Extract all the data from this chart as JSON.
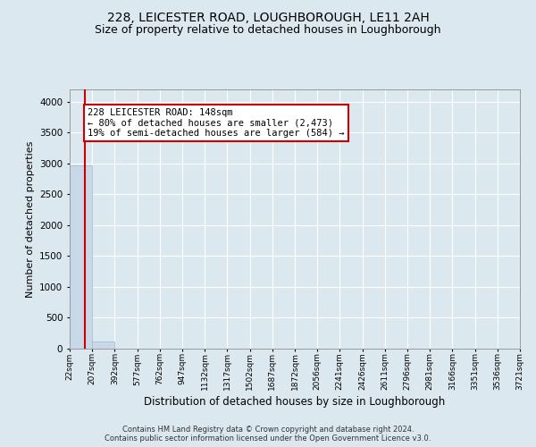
{
  "title": "228, LEICESTER ROAD, LOUGHBOROUGH, LE11 2AH",
  "subtitle": "Size of property relative to detached houses in Loughborough",
  "xlabel": "Distribution of detached houses by size in Loughborough",
  "ylabel": "Number of detached properties",
  "footer_line1": "Contains HM Land Registry data © Crown copyright and database right 2024.",
  "footer_line2": "Contains public sector information licensed under the Open Government Licence v3.0.",
  "bin_edges": [
    22,
    207,
    392,
    577,
    762,
    947,
    1132,
    1317,
    1502,
    1687,
    1872,
    2056,
    2241,
    2426,
    2611,
    2796,
    2981,
    3166,
    3351,
    3536,
    3721
  ],
  "bin_labels": [
    "22sqm",
    "207sqm",
    "392sqm",
    "577sqm",
    "762sqm",
    "947sqm",
    "1132sqm",
    "1317sqm",
    "1502sqm",
    "1687sqm",
    "1872sqm",
    "2056sqm",
    "2241sqm",
    "2426sqm",
    "2611sqm",
    "2796sqm",
    "2981sqm",
    "3166sqm",
    "3351sqm",
    "3536sqm",
    "3721sqm"
  ],
  "bar_heights": [
    2970,
    110,
    0,
    0,
    0,
    0,
    0,
    0,
    0,
    0,
    0,
    0,
    0,
    0,
    0,
    0,
    0,
    0,
    0,
    0
  ],
  "bar_color": "#c8d8e8",
  "bar_edgecolor": "#a0b8cc",
  "subject_size": 148,
  "subject_color": "#cc0000",
  "annotation_line1": "228 LEICESTER ROAD: 148sqm",
  "annotation_line2": "← 80% of detached houses are smaller (2,473)",
  "annotation_line3": "19% of semi-detached houses are larger (584) →",
  "ylim": [
    0,
    4200
  ],
  "yticks": [
    0,
    500,
    1000,
    1500,
    2000,
    2500,
    3000,
    3500,
    4000
  ],
  "bg_color": "#dce8f0",
  "plot_bg_color": "#dce8f0",
  "grid_color": "#ffffff",
  "title_fontsize": 10,
  "subtitle_fontsize": 9,
  "annotation_box_color": "#ffffff",
  "annotation_box_edgecolor": "#cc0000",
  "annotation_fontsize": 7.5,
  "footer_fontsize": 6.0
}
